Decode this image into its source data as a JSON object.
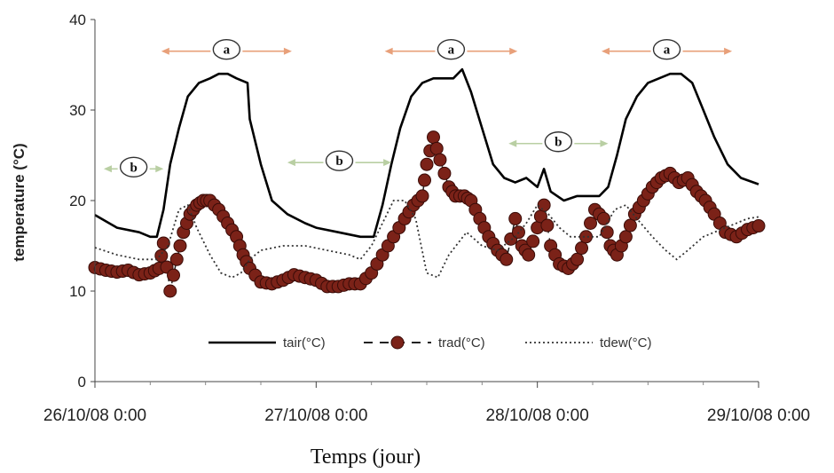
{
  "chart_data": {
    "type": "line",
    "xlabel": "Temps (jour)",
    "ylabel": "temperature (°C)",
    "ylim": [
      0,
      40
    ],
    "yticks": [
      0,
      10,
      20,
      30,
      40
    ],
    "xlim": [
      0,
      3
    ],
    "xticks": [
      {
        "x": 0,
        "label": "26/10/08 0:00"
      },
      {
        "x": 1,
        "label": "27/10/08 0:00"
      },
      {
        "x": 2,
        "label": "28/10/08 0:00"
      },
      {
        "x": 3,
        "label": "29/10/08 0:00"
      }
    ],
    "legend_position": "bottom-center",
    "series": [
      {
        "name": "tair(°C)",
        "style": "solid",
        "color": "#000000",
        "points": [
          [
            0,
            18.4
          ],
          [
            0.1,
            17
          ],
          [
            0.2,
            16.5
          ],
          [
            0.25,
            16
          ],
          [
            0.28,
            16
          ],
          [
            0.31,
            19
          ],
          [
            0.34,
            24
          ],
          [
            0.38,
            28
          ],
          [
            0.42,
            31.5
          ],
          [
            0.47,
            33
          ],
          [
            0.52,
            33.5
          ],
          [
            0.56,
            34
          ],
          [
            0.6,
            34
          ],
          [
            0.64,
            33.5
          ],
          [
            0.69,
            33
          ],
          [
            0.7,
            29
          ],
          [
            0.75,
            24
          ],
          [
            0.8,
            20
          ],
          [
            0.87,
            18.5
          ],
          [
            0.95,
            17.5
          ],
          [
            1,
            17
          ],
          [
            1.1,
            16.5
          ],
          [
            1.2,
            16
          ],
          [
            1.26,
            16
          ],
          [
            1.3,
            19.5
          ],
          [
            1.34,
            24
          ],
          [
            1.38,
            28
          ],
          [
            1.43,
            31.5
          ],
          [
            1.48,
            33
          ],
          [
            1.53,
            33.5
          ],
          [
            1.58,
            33.5
          ],
          [
            1.62,
            33.5
          ],
          [
            1.66,
            34.5
          ],
          [
            1.7,
            32
          ],
          [
            1.75,
            28
          ],
          [
            1.8,
            24
          ],
          [
            1.85,
            22.5
          ],
          [
            1.9,
            22
          ],
          [
            1.95,
            22.5
          ],
          [
            2,
            21.5
          ],
          [
            2.03,
            23.5
          ],
          [
            2.06,
            21
          ],
          [
            2.12,
            20
          ],
          [
            2.18,
            20.5
          ],
          [
            2.24,
            20.5
          ],
          [
            2.28,
            20.5
          ],
          [
            2.32,
            21.5
          ],
          [
            2.36,
            25
          ],
          [
            2.4,
            29
          ],
          [
            2.45,
            31.5
          ],
          [
            2.5,
            33
          ],
          [
            2.55,
            33.5
          ],
          [
            2.6,
            34
          ],
          [
            2.65,
            34
          ],
          [
            2.7,
            33
          ],
          [
            2.75,
            30
          ],
          [
            2.8,
            27
          ],
          [
            2.86,
            24
          ],
          [
            2.92,
            22.5
          ],
          [
            3,
            21.8
          ]
        ]
      },
      {
        "name": "trad(°C)",
        "style": "markers",
        "color": "#7b2218",
        "points": [
          [
            0,
            12.6
          ],
          [
            0.05,
            12.3
          ],
          [
            0.1,
            12.1
          ],
          [
            0.15,
            12.3
          ],
          [
            0.2,
            11.8
          ],
          [
            0.25,
            12
          ],
          [
            0.29,
            12.5
          ],
          [
            0.31,
            15.3
          ],
          [
            0.34,
            10
          ],
          [
            0.37,
            13.5
          ],
          [
            0.4,
            16.5
          ],
          [
            0.43,
            18.5
          ],
          [
            0.46,
            19.5
          ],
          [
            0.49,
            20
          ],
          [
            0.52,
            20
          ],
          [
            0.56,
            19
          ],
          [
            0.6,
            17.5
          ],
          [
            0.64,
            16
          ],
          [
            0.67,
            14
          ],
          [
            0.7,
            12.5
          ],
          [
            0.75,
            11
          ],
          [
            0.8,
            10.8
          ],
          [
            0.85,
            11.2
          ],
          [
            0.9,
            11.8
          ],
          [
            0.95,
            11.5
          ],
          [
            1,
            11.2
          ],
          [
            1.05,
            10.5
          ],
          [
            1.1,
            10.5
          ],
          [
            1.15,
            10.8
          ],
          [
            1.2,
            10.8
          ],
          [
            1.25,
            12
          ],
          [
            1.3,
            14
          ],
          [
            1.35,
            16
          ],
          [
            1.4,
            18
          ],
          [
            1.44,
            19.5
          ],
          [
            1.48,
            20.5
          ],
          [
            1.5,
            24
          ],
          [
            1.53,
            27
          ],
          [
            1.56,
            24.5
          ],
          [
            1.6,
            21.5
          ],
          [
            1.63,
            20.5
          ],
          [
            1.67,
            20.5
          ],
          [
            1.7,
            20
          ],
          [
            1.74,
            18
          ],
          [
            1.78,
            16
          ],
          [
            1.82,
            14.5
          ],
          [
            1.86,
            13.5
          ],
          [
            1.9,
            18
          ],
          [
            1.93,
            15
          ],
          [
            1.96,
            14
          ],
          [
            2,
            17
          ],
          [
            2.03,
            19.5
          ],
          [
            2.06,
            15
          ],
          [
            2.1,
            13
          ],
          [
            2.14,
            12.5
          ],
          [
            2.18,
            13.5
          ],
          [
            2.22,
            16
          ],
          [
            2.26,
            19
          ],
          [
            2.3,
            18
          ],
          [
            2.33,
            15
          ],
          [
            2.36,
            14
          ],
          [
            2.4,
            16
          ],
          [
            2.44,
            18.5
          ],
          [
            2.48,
            20
          ],
          [
            2.52,
            21.5
          ],
          [
            2.56,
            22.5
          ],
          [
            2.6,
            23
          ],
          [
            2.64,
            22
          ],
          [
            2.68,
            22.5
          ],
          [
            2.72,
            21
          ],
          [
            2.76,
            20
          ],
          [
            2.8,
            18.5
          ],
          [
            2.85,
            16.5
          ],
          [
            2.9,
            16
          ],
          [
            2.95,
            16.8
          ],
          [
            3,
            17.2
          ]
        ]
      },
      {
        "name": "tdew(°C)",
        "style": "dotted",
        "color": "#333333",
        "points": [
          [
            0,
            14.8
          ],
          [
            0.1,
            14
          ],
          [
            0.2,
            13.5
          ],
          [
            0.28,
            13.5
          ],
          [
            0.33,
            15
          ],
          [
            0.38,
            19
          ],
          [
            0.42,
            19.5
          ],
          [
            0.46,
            17
          ],
          [
            0.52,
            14
          ],
          [
            0.57,
            12
          ],
          [
            0.62,
            11.5
          ],
          [
            0.66,
            12
          ],
          [
            0.7,
            13.5
          ],
          [
            0.75,
            14.5
          ],
          [
            0.85,
            15
          ],
          [
            0.95,
            15
          ],
          [
            1.05,
            14.5
          ],
          [
            1.15,
            14
          ],
          [
            1.2,
            13.5
          ],
          [
            1.25,
            15
          ],
          [
            1.3,
            17.5
          ],
          [
            1.35,
            20
          ],
          [
            1.4,
            20
          ],
          [
            1.45,
            18
          ],
          [
            1.5,
            12
          ],
          [
            1.55,
            11.5
          ],
          [
            1.6,
            14
          ],
          [
            1.68,
            16.5
          ],
          [
            1.75,
            15
          ],
          [
            1.82,
            14.5
          ],
          [
            1.9,
            16
          ],
          [
            1.95,
            17.5
          ],
          [
            2,
            19.5
          ],
          [
            2.05,
            18.5
          ],
          [
            2.1,
            17
          ],
          [
            2.15,
            16
          ],
          [
            2.2,
            16
          ],
          [
            2.28,
            16
          ],
          [
            2.35,
            19
          ],
          [
            2.4,
            19.5
          ],
          [
            2.45,
            18
          ],
          [
            2.52,
            16
          ],
          [
            2.58,
            14.5
          ],
          [
            2.63,
            13.5
          ],
          [
            2.68,
            14.5
          ],
          [
            2.75,
            16
          ],
          [
            2.85,
            17
          ],
          [
            2.95,
            18
          ],
          [
            3,
            18.2
          ]
        ]
      }
    ],
    "period_labels": [
      {
        "label": "a",
        "x_from": 0.3,
        "x_to": 0.89,
        "y": 36.5
      },
      {
        "label": "a",
        "x_from": 1.31,
        "x_to": 1.91,
        "y": 36.5
      },
      {
        "label": "a",
        "x_from": 2.29,
        "x_to": 2.88,
        "y": 36.5
      },
      {
        "label": "b",
        "x_from": 0.04,
        "x_to": 0.31,
        "y": 23.5
      },
      {
        "label": "b",
        "x_from": 0.87,
        "x_to": 1.34,
        "y": 24.2
      },
      {
        "label": "b",
        "x_from": 1.87,
        "x_to": 2.32,
        "y": 26.3
      }
    ]
  }
}
